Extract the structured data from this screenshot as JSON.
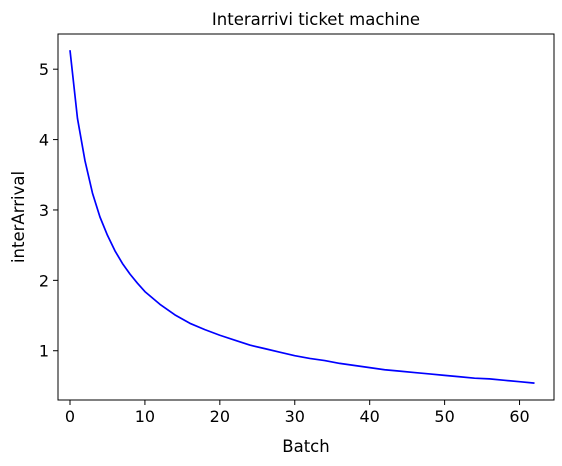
{
  "chart_data": {
    "type": "line",
    "title": "Interarrivi ticket machine",
    "xlabel": "Batch",
    "ylabel": "interArrival",
    "xlim": [
      -1.6,
      64.6
    ],
    "ylim": [
      0.3,
      5.5
    ],
    "xticks": [
      0,
      10,
      20,
      30,
      40,
      50,
      60
    ],
    "yticks": [
      1,
      2,
      3,
      4,
      5
    ],
    "grid": false,
    "legend": "none",
    "series": [
      {
        "color": "#0000ff",
        "x": [
          0,
          1,
          2,
          3,
          4,
          5,
          6,
          7,
          8,
          9,
          10,
          12,
          14,
          16,
          18,
          20,
          22,
          24,
          26,
          28,
          30,
          32,
          34,
          36,
          38,
          40,
          42,
          44,
          46,
          48,
          50,
          52,
          54,
          56,
          58,
          60,
          62
        ],
        "y": [
          5.27,
          4.3,
          3.7,
          3.24,
          2.9,
          2.64,
          2.42,
          2.24,
          2.09,
          1.96,
          1.84,
          1.66,
          1.51,
          1.39,
          1.3,
          1.22,
          1.15,
          1.08,
          1.03,
          0.98,
          0.93,
          0.89,
          0.86,
          0.82,
          0.79,
          0.76,
          0.73,
          0.71,
          0.69,
          0.67,
          0.65,
          0.63,
          0.61,
          0.6,
          0.58,
          0.56,
          0.54
        ]
      }
    ]
  }
}
